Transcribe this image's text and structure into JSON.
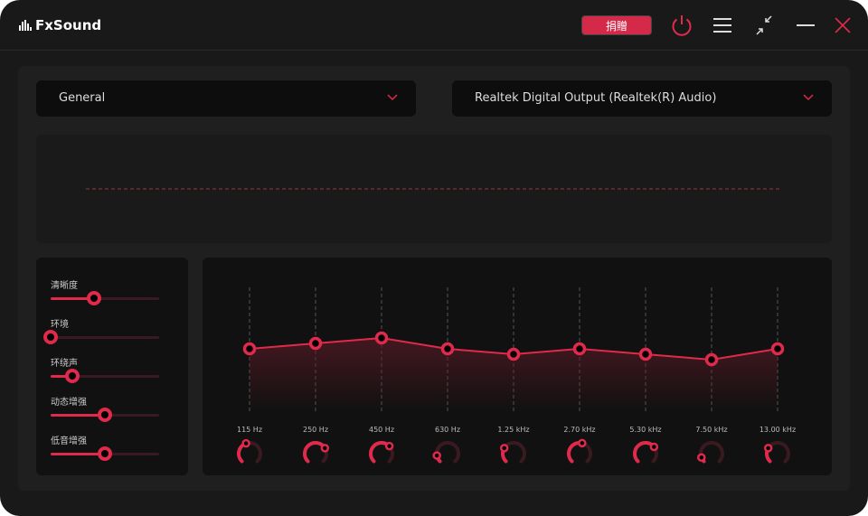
{
  "app": {
    "name": "FxSound"
  },
  "toolbar": {
    "donate_label": "捐贈",
    "icons": [
      "power-icon",
      "menu-icon",
      "minimize-window-icon",
      "minimize-icon",
      "close-icon"
    ],
    "accent": "#e02a4c"
  },
  "presets": {
    "selected": "General"
  },
  "output": {
    "selected": "Realtek Digital Output (Realtek(R) Audio)"
  },
  "effects": [
    {
      "label": "清晰度",
      "value": 0.4
    },
    {
      "label": "环境",
      "value": 0.0
    },
    {
      "label": "环绕声",
      "value": 0.2
    },
    {
      "label": "动态增强",
      "value": 0.5
    },
    {
      "label": "低音增强",
      "value": 0.5
    }
  ],
  "eq": {
    "bands": [
      {
        "freq": "115 Hz",
        "gain": 0,
        "knob": 0.43
      },
      {
        "freq": "250 Hz",
        "gain": 1,
        "knob": 0.72
      },
      {
        "freq": "450 Hz",
        "gain": 2,
        "knob": 0.67
      },
      {
        "freq": "630 Hz",
        "gain": 0,
        "knob": 0.13
      },
      {
        "freq": "1.25 kHz",
        "gain": -1,
        "knob": 0.28
      },
      {
        "freq": "2.70 kHz",
        "gain": 0,
        "knob": 0.55
      },
      {
        "freq": "5.30 kHz",
        "gain": -1,
        "knob": 0.69
      },
      {
        "freq": "7.50 kHz",
        "gain": -2,
        "knob": 0.09
      },
      {
        "freq": "13.00 kHz",
        "gain": 0,
        "knob": 0.28
      }
    ]
  }
}
